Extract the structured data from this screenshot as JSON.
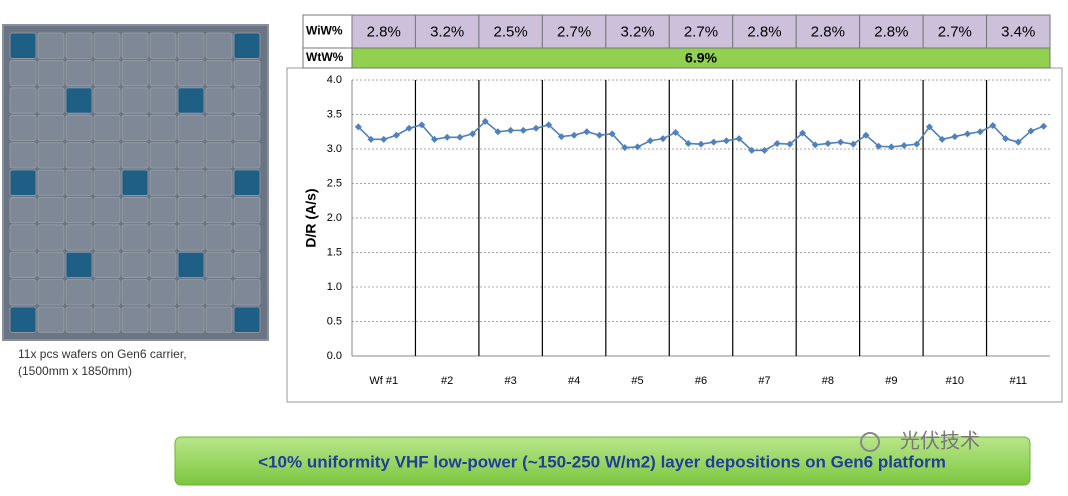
{
  "table": {
    "rows": [
      {
        "label": "WiW%",
        "cells": [
          "2.8%",
          "3.2%",
          "2.5%",
          "2.7%",
          "3.2%",
          "2.7%",
          "2.8%",
          "2.8%",
          "2.8%",
          "2.7%",
          "3.4%"
        ]
      },
      {
        "label": "WtW%",
        "cells": [
          "6.9%"
        ]
      }
    ]
  },
  "chart_data": {
    "type": "line",
    "y_label": "D/R (A/s)",
    "categories": [
      "Wf #1",
      "#2",
      "#3",
      "#4",
      "#5",
      "#6",
      "#7",
      "#8",
      "#9",
      "#10",
      "#11"
    ],
    "values": [
      [
        3.32,
        3.14,
        3.14,
        3.2,
        3.3
      ],
      [
        3.35,
        3.14,
        3.17,
        3.17,
        3.22
      ],
      [
        3.4,
        3.25,
        3.27,
        3.27,
        3.3
      ],
      [
        3.35,
        3.18,
        3.2,
        3.25,
        3.2
      ],
      [
        3.22,
        3.02,
        3.03,
        3.12,
        3.15
      ],
      [
        3.24,
        3.08,
        3.07,
        3.1,
        3.12
      ],
      [
        3.15,
        2.98,
        2.98,
        3.08,
        3.07
      ],
      [
        3.23,
        3.06,
        3.08,
        3.1,
        3.07
      ],
      [
        3.2,
        3.04,
        3.03,
        3.05,
        3.07
      ],
      [
        3.32,
        3.14,
        3.18,
        3.22,
        3.25
      ],
      [
        3.34,
        3.15,
        3.1,
        3.26,
        3.33
      ]
    ],
    "color": "#4f81bd",
    "ylim": [
      0,
      4
    ],
    "yticks": [
      {
        "value": 0,
        "label": "0.0"
      },
      0.5,
      {
        "value": 1,
        "label": "1.0"
      },
      1.5,
      {
        "value": 2,
        "label": "2.0"
      },
      2.5,
      {
        "value": 3,
        "label": "3.0"
      },
      3.5,
      {
        "value": 4,
        "label": "4.0"
      }
    ],
    "grid": true
  },
  "caption": [
    "11x pcs wafers on Gen6 carrier,",
    "(1500mm x 1850mm)"
  ],
  "banner": "<10% uniformity VHF low-power (~150-250 W/m2) layer depositions on Gen6 platform",
  "watermark": "光伏技术"
}
